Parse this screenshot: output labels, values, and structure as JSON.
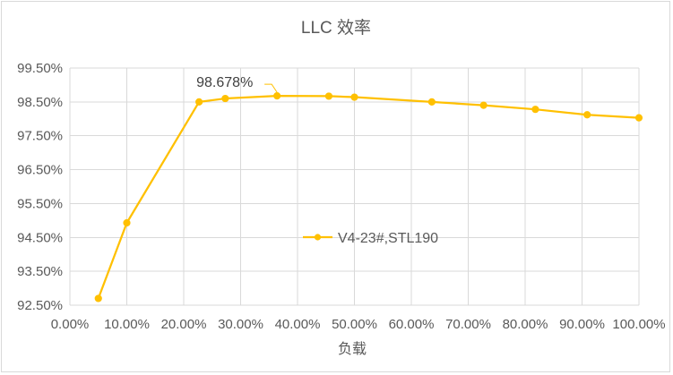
{
  "chart_data": {
    "type": "line",
    "title": "LLC 效率",
    "xlabel": "负载",
    "ylabel": "",
    "xlim": [
      0,
      100
    ],
    "ylim": [
      92.5,
      99.5
    ],
    "x_ticks": [
      "0.00%",
      "10.00%",
      "20.00%",
      "30.00%",
      "40.00%",
      "50.00%",
      "60.00%",
      "70.00%",
      "80.00%",
      "90.00%",
      "100.00%"
    ],
    "y_ticks": [
      "99.50%",
      "98.50%",
      "97.50%",
      "96.50%",
      "95.50%",
      "94.50%",
      "93.50%",
      "92.50%"
    ],
    "grid": true,
    "legend_position": "center-right",
    "series": [
      {
        "name": "V4-23#,STL190",
        "color": "#ffc000",
        "x": [
          5,
          10,
          22.7,
          27.3,
          36.4,
          45.5,
          50,
          63.6,
          72.7,
          81.8,
          90.9,
          100
        ],
        "y": [
          92.7,
          94.93,
          98.5,
          98.6,
          98.678,
          98.67,
          98.64,
          98.5,
          98.4,
          98.28,
          98.12,
          98.03
        ]
      }
    ],
    "annotations": [
      {
        "text": "98.678%",
        "x": 36.4,
        "y": 98.678
      }
    ]
  }
}
